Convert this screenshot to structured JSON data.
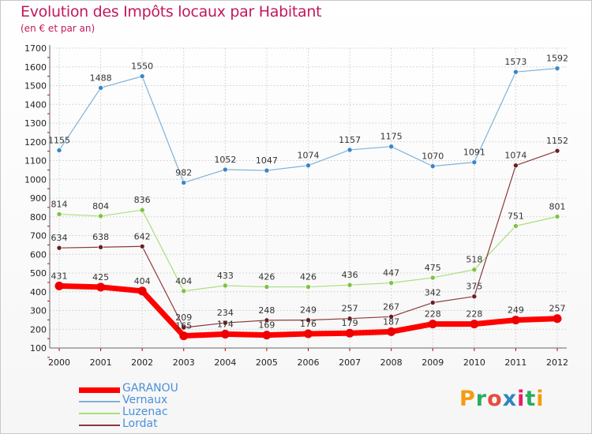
{
  "title": "Evolution des Impôts locaux par Habitant",
  "subtitle": "(en € et par an)",
  "logo": {
    "text": "Proxiti",
    "colors": [
      "#f39c12",
      "#27ae60",
      "#e74c3c",
      "#2e86c1",
      "#e91e63",
      "#27ae60",
      "#f39c12"
    ]
  },
  "chart_data": {
    "type": "line",
    "x": [
      "2000",
      "2001",
      "2002",
      "2003",
      "2004",
      "2005",
      "2006",
      "2007",
      "2008",
      "2009",
      "2010",
      "2011",
      "2012"
    ],
    "ylim": [
      100,
      1700
    ],
    "yticks": [
      100,
      200,
      300,
      400,
      500,
      600,
      700,
      800,
      900,
      1000,
      1100,
      1200,
      1300,
      1400,
      1500,
      1600,
      1700
    ],
    "grid": true,
    "legend_position": "bottom-left",
    "series": [
      {
        "name": "Vernaux",
        "color": "#7fb2d8",
        "marker": "#3a86c8",
        "width": 1.2,
        "values": [
          1155,
          1488,
          1550,
          982,
          1052,
          1047,
          1074,
          1157,
          1175,
          1070,
          1091,
          1573,
          1592
        ],
        "labels": [
          "1155",
          "1488",
          "1550",
          "982",
          "1052",
          "1047",
          "1074",
          "1157",
          "1175",
          "1070",
          "1091",
          "1573",
          "1592"
        ]
      },
      {
        "name": "Luzenac",
        "color": "#a8e07a",
        "marker": "#7dc242",
        "width": 1.2,
        "values": [
          814,
          804,
          836,
          404,
          433,
          426,
          426,
          436,
          447,
          475,
          518,
          751,
          801
        ],
        "labels": [
          "814",
          "804",
          "836",
          "404",
          "433",
          "426",
          "426",
          "436",
          "447",
          "475",
          "518",
          "751",
          "801"
        ]
      },
      {
        "name": "Lordat",
        "color": "#8b3a3a",
        "marker": "#6b1f1f",
        "width": 1.2,
        "values": [
          634,
          638,
          642,
          209,
          234,
          248,
          249,
          257,
          267,
          342,
          375,
          1074,
          1152
        ],
        "labels": [
          "634",
          "638",
          "642",
          "209",
          "234",
          "248",
          "249",
          "257",
          "267",
          "342",
          "375",
          "1074",
          "1152"
        ]
      },
      {
        "name": "GARANOU",
        "color": "#ff0000",
        "marker": "#ee0000",
        "width": 7,
        "values": [
          431,
          425,
          404,
          165,
          174,
          169,
          176,
          179,
          187,
          228,
          228,
          249,
          257
        ],
        "labels": [
          "431",
          "425",
          "404",
          "165",
          "174",
          "169",
          "176",
          "179",
          "187",
          "228",
          "228",
          "249",
          "257"
        ]
      }
    ]
  },
  "legend": [
    {
      "name": "GARANOU",
      "color": "#ff0000",
      "text_color": "#4a90d9",
      "thickness": 7
    },
    {
      "name": "Vernaux",
      "color": "#7fb2d8",
      "text_color": "#4a90d9",
      "thickness": 2
    },
    {
      "name": "Luzenac",
      "color": "#a8e07a",
      "text_color": "#4a90d9",
      "thickness": 2
    },
    {
      "name": "Lordat",
      "color": "#8b3a3a",
      "text_color": "#4a90d9",
      "thickness": 2
    }
  ]
}
